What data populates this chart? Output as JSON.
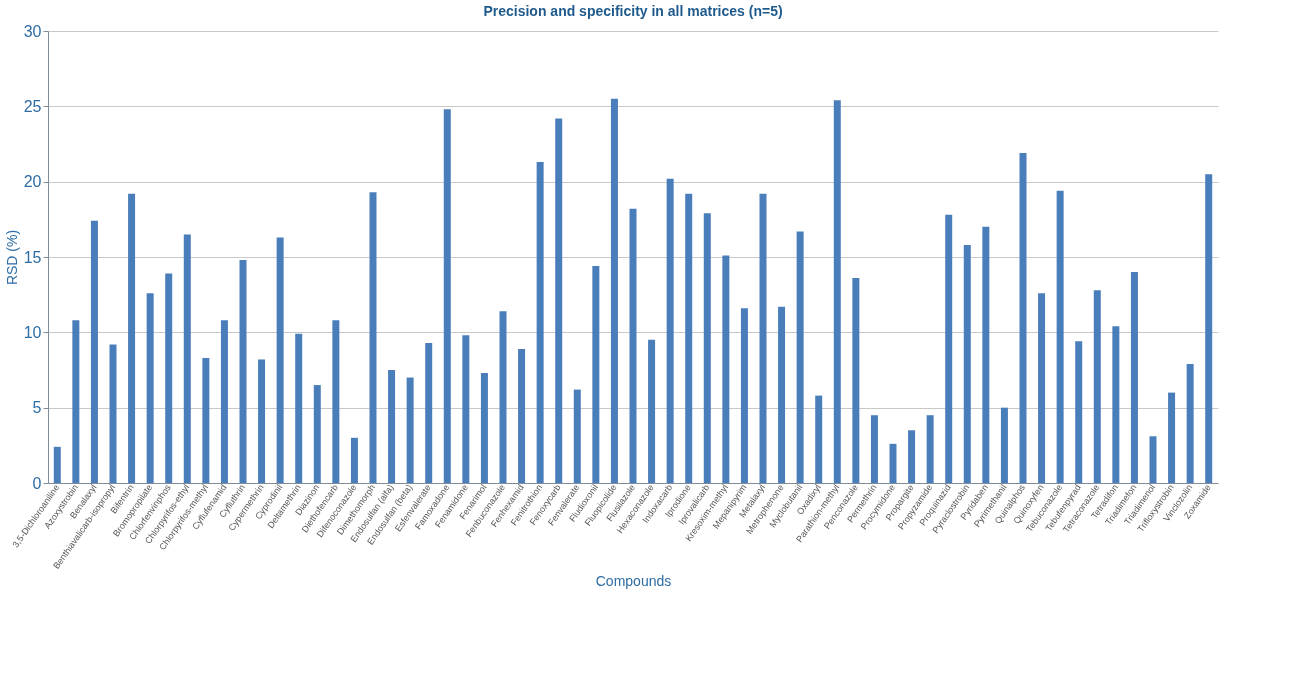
{
  "chart_data": {
    "type": "bar",
    "title": "Precision and specificity in all matrices (n=5)",
    "xlabel": "Compounds",
    "ylabel": "RSD (%)",
    "categories": [
      "3,5-Dichloroaniline",
      "Azoxystrobin",
      "Benalaxyl",
      "Benthiavalicarb-isopropyl",
      "Bifentrin",
      "Bromopropilate",
      "Chlorfenvinphos",
      "Chlorpyrifos-ethyl",
      "Chlorpyrifos-methyl",
      "Cyflufenamid",
      "Cyfluthrin",
      "Cypermethrin",
      "Cyprodinil",
      "Deltamethrin",
      "Diazinon",
      "Diethofencarb",
      "Difenoconazole",
      "Dimethomorph",
      "Endosulfan (alfa)",
      "Endosulfan (beta)",
      "Esfenvalerate",
      "Famoxadone",
      "Fenamidone",
      "Fenarimol",
      "Fenbuconazole",
      "Fenhexamid",
      "Fenitrothion",
      "Fenoxycarb",
      "Fenvalerate",
      "Fludioxonil",
      "Fluopicolide",
      "Flusilazole",
      "Hexaconazole",
      "Indoxacarb",
      "Iprodione",
      "Iprovalicarb",
      "Kresoxim-methyl",
      "Mepanipyrim",
      "Metalaxyl",
      "Metrophenone",
      "Myclobutanil",
      "Oxadixyl",
      "Parathion-methyl",
      "Penconazole",
      "Permethrin",
      "Procymidone",
      "Propargite",
      "Propyzamide",
      "Proquinazid",
      "Pyraclostrobin",
      "Pyridaben",
      "Pyrimethanil",
      "Quinalphos",
      "Quinoxyfen",
      "Tebuconazole",
      "Tebufenpyrad",
      "Tetraconazole",
      "Tetradifon",
      "Triadimefon",
      "Triadimenol",
      "Trifloxystrobin",
      "Vinclozolin",
      "Zoxamide"
    ],
    "values": [
      2.4,
      10.8,
      17.4,
      9.2,
      19.2,
      12.6,
      13.9,
      16.5,
      8.3,
      10.8,
      14.8,
      8.2,
      16.3,
      9.9,
      6.5,
      10.8,
      3.0,
      19.3,
      7.5,
      7.0,
      9.3,
      24.8,
      9.8,
      7.3,
      11.4,
      8.9,
      21.3,
      24.2,
      6.2,
      14.4,
      25.5,
      18.2,
      9.5,
      20.2,
      19.2,
      17.9,
      15.1,
      11.6,
      19.2,
      11.7,
      16.7,
      5.8,
      25.4,
      13.6,
      4.5,
      2.6,
      3.5,
      4.5,
      17.8,
      15.8,
      17.0,
      5.0,
      21.9,
      12.6,
      19.4,
      9.4,
      12.8,
      10.4,
      14.0,
      3.1,
      6.0,
      7.9,
      20.5
    ],
    "color": "#4a7ebb",
    "ylim": [
      0,
      30
    ],
    "yticks": [
      0,
      5,
      10,
      15,
      20,
      25,
      30
    ],
    "grid": "y"
  }
}
